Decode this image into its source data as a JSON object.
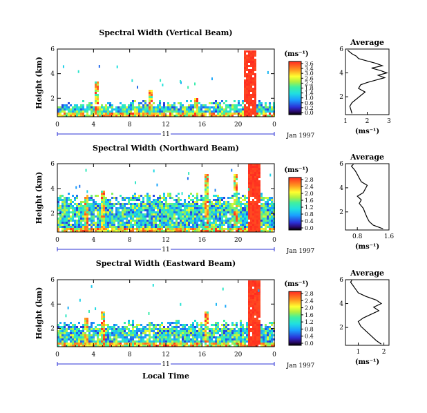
{
  "figure": {
    "xlabel": "Local Time",
    "date_label": "Jan 1997"
  },
  "chart_data": [
    {
      "type": "heatmap",
      "title": "Spectral Width (Vertical Beam)",
      "ylabel": "Height (km)",
      "xlabel": "Local Time",
      "xticks": [
        "0",
        "4",
        "8",
        "12",
        "16",
        "20",
        "0"
      ],
      "xlim": [
        0,
        24
      ],
      "yticks": [
        "2",
        "4",
        "6"
      ],
      "ylim": [
        0.5,
        6
      ],
      "day_label": "11",
      "date_label": "Jan 1997",
      "colorbar": {
        "unit": "(ms⁻¹)",
        "ticks": [
          "3.6",
          "3.4",
          "3.0",
          "2.6",
          "2.2",
          "1.8",
          "1.4",
          "1.0",
          "0.6",
          "0.2",
          "0.0"
        ],
        "range": [
          0,
          3.6
        ]
      },
      "average": {
        "title": "Average",
        "xlabel": "(ms⁻¹)",
        "xticks": [
          "1",
          "2",
          "3"
        ],
        "xlim": [
          1,
          3
        ],
        "yticks": [
          "2",
          "4",
          "6"
        ],
        "ylim": [
          0.5,
          6
        ],
        "x": [
          1.3,
          1.25,
          1.2,
          1.3,
          1.5,
          1.7,
          1.9,
          1.6,
          1.7,
          2.0,
          2.4,
          2.8,
          2.5,
          2.9,
          2.6,
          2.2,
          2.7,
          2.4,
          2.0,
          1.6,
          1.5,
          1.3,
          1.1
        ],
        "y": [
          0.6,
          0.9,
          1.2,
          1.5,
          1.8,
          2.1,
          2.4,
          2.7,
          3.0,
          3.2,
          3.4,
          3.6,
          3.8,
          4.0,
          4.2,
          4.4,
          4.6,
          4.8,
          5.0,
          5.2,
          5.4,
          5.6,
          5.9
        ]
      }
    },
    {
      "type": "heatmap",
      "title": "Spectral Width (Northward Beam)",
      "ylabel": "Height (km)",
      "xlabel": "Local Time",
      "xticks": [
        "0",
        "4",
        "8",
        "12",
        "16",
        "20",
        "0"
      ],
      "xlim": [
        0,
        24
      ],
      "yticks": [
        "2",
        "4",
        "6"
      ],
      "ylim": [
        0.5,
        6
      ],
      "day_label": "11",
      "date_label": "Jan 1997",
      "colorbar": {
        "unit": "(ms⁻¹)",
        "ticks": [
          "2.8",
          "2.4",
          "2.0",
          "1.6",
          "1.2",
          "0.8",
          "0.4",
          "0.0"
        ],
        "range": [
          0,
          2.8
        ]
      },
      "average": {
        "title": "Average",
        "xlabel": "(ms⁻¹)",
        "xticks": [
          "0.8",
          "1.6"
        ],
        "xlim": [
          0.5,
          1.6
        ],
        "yticks": [
          "2",
          "4",
          "6"
        ],
        "ylim": [
          0.5,
          6
        ],
        "x": [
          1.45,
          1.2,
          1.1,
          1.05,
          1.0,
          0.95,
          0.85,
          0.9,
          0.8,
          0.95,
          1.0,
          1.05,
          0.9,
          0.85,
          0.8,
          0.75,
          0.7,
          0.65,
          0.7
        ],
        "y": [
          0.6,
          0.9,
          1.2,
          1.5,
          1.9,
          2.3,
          2.7,
          3.0,
          3.3,
          3.6,
          3.9,
          4.2,
          4.5,
          4.8,
          5.1,
          5.4,
          5.6,
          5.8,
          5.95
        ]
      }
    },
    {
      "type": "heatmap",
      "title": "Spectral Width (Eastward Beam)",
      "ylabel": "Height (km)",
      "xlabel": "Local Time",
      "xticks": [
        "0",
        "4",
        "8",
        "12",
        "16",
        "20",
        "0"
      ],
      "xlim": [
        0,
        24
      ],
      "yticks": [
        "2",
        "4",
        "6"
      ],
      "ylim": [
        0.5,
        6
      ],
      "day_label": "11",
      "date_label": "Jan 1997",
      "colorbar": {
        "unit": "(ms⁻¹)",
        "ticks": [
          "2.8",
          "2.4",
          "2.0",
          "1.6",
          "1.2",
          "0.8",
          "0.4",
          "0.0"
        ],
        "range": [
          0,
          2.8
        ]
      },
      "average": {
        "title": "Average",
        "xlabel": "(ms⁻¹)",
        "xticks": [
          "1",
          "2"
        ],
        "xlim": [
          0.5,
          2.2
        ],
        "yticks": [
          "2",
          "4",
          "6"
        ],
        "ylim": [
          0.5,
          6
        ],
        "x": [
          1.9,
          1.7,
          1.5,
          1.3,
          1.1,
          1.0,
          1.2,
          1.5,
          1.8,
          1.6,
          1.9,
          1.7,
          1.3,
          1.0,
          0.9,
          0.8,
          0.7,
          0.75
        ],
        "y": [
          0.6,
          0.9,
          1.3,
          1.7,
          2.1,
          2.5,
          2.8,
          3.1,
          3.4,
          3.7,
          4.0,
          4.3,
          4.6,
          4.9,
          5.2,
          5.5,
          5.8,
          5.95
        ]
      }
    }
  ]
}
